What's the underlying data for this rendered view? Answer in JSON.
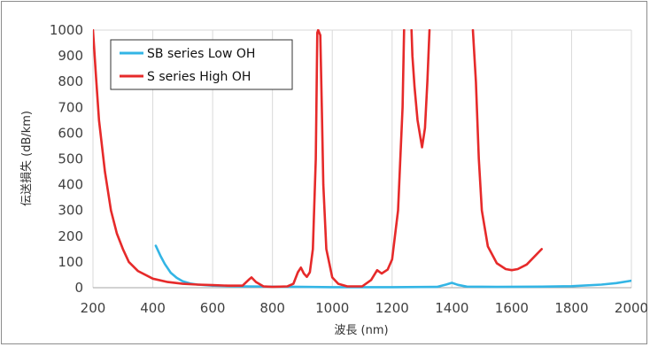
{
  "chart_data": {
    "type": "line",
    "title": "",
    "xlabel": "波長 (nm)",
    "ylabel": "伝送損失 (dB/km)",
    "xlim": [
      200,
      2000
    ],
    "ylim": [
      0,
      1000
    ],
    "x_ticks": [
      "200",
      "400",
      "600",
      "800",
      "1000",
      "1200",
      "1400",
      "1600",
      "1800",
      "2000"
    ],
    "y_ticks": [
      "0",
      "100",
      "200",
      "300",
      "400",
      "500",
      "600",
      "700",
      "800",
      "900",
      "1000"
    ],
    "grid": "vertical",
    "legend_position": "top-left",
    "series": [
      {
        "name": "SB series Low OH",
        "color": "#33b5e5",
        "points": [
          [
            410,
            163
          ],
          [
            425,
            125
          ],
          [
            440,
            92
          ],
          [
            460,
            58
          ],
          [
            480,
            38
          ],
          [
            500,
            25
          ],
          [
            525,
            16
          ],
          [
            550,
            12
          ],
          [
            600,
            8
          ],
          [
            700,
            5
          ],
          [
            800,
            4
          ],
          [
            900,
            3
          ],
          [
            1000,
            2
          ],
          [
            1200,
            2
          ],
          [
            1350,
            3
          ],
          [
            1380,
            12
          ],
          [
            1400,
            19
          ],
          [
            1420,
            11
          ],
          [
            1450,
            4
          ],
          [
            1550,
            3
          ],
          [
            1700,
            4
          ],
          [
            1800,
            6
          ],
          [
            1900,
            12
          ],
          [
            1950,
            18
          ],
          [
            2000,
            27
          ]
        ]
      },
      {
        "name": "S series High OH",
        "color": "#e62a2a",
        "points": [
          [
            200,
            1000
          ],
          [
            210,
            820
          ],
          [
            220,
            650
          ],
          [
            240,
            450
          ],
          [
            260,
            300
          ],
          [
            280,
            210
          ],
          [
            300,
            150
          ],
          [
            320,
            100
          ],
          [
            350,
            65
          ],
          [
            400,
            35
          ],
          [
            450,
            22
          ],
          [
            500,
            15
          ],
          [
            550,
            12
          ],
          [
            600,
            10
          ],
          [
            650,
            8
          ],
          [
            700,
            8
          ],
          [
            720,
            30
          ],
          [
            730,
            40
          ],
          [
            745,
            22
          ],
          [
            770,
            5
          ],
          [
            800,
            3
          ],
          [
            850,
            5
          ],
          [
            870,
            15
          ],
          [
            885,
            60
          ],
          [
            895,
            78
          ],
          [
            905,
            55
          ],
          [
            915,
            42
          ],
          [
            925,
            60
          ],
          [
            935,
            150
          ],
          [
            945,
            500
          ],
          [
            950,
            990
          ],
          [
            953,
            1000
          ],
          [
            960,
            980
          ],
          [
            965,
            700
          ],
          [
            970,
            400
          ],
          [
            980,
            150
          ],
          [
            1000,
            40
          ],
          [
            1020,
            15
          ],
          [
            1050,
            5
          ],
          [
            1100,
            5
          ],
          [
            1130,
            30
          ],
          [
            1150,
            68
          ],
          [
            1165,
            55
          ],
          [
            1185,
            70
          ],
          [
            1200,
            110
          ],
          [
            1220,
            300
          ],
          [
            1235,
            700
          ],
          [
            1240,
            1000
          ],
          [
            1265,
            1000
          ],
          [
            1268,
            900
          ],
          [
            1275,
            780
          ],
          [
            1285,
            650
          ],
          [
            1300,
            545
          ],
          [
            1310,
            620
          ],
          [
            1318,
            800
          ],
          [
            1325,
            1000
          ],
          [
            1470,
            1000
          ],
          [
            1480,
            800
          ],
          [
            1490,
            500
          ],
          [
            1500,
            300
          ],
          [
            1520,
            160
          ],
          [
            1550,
            95
          ],
          [
            1580,
            72
          ],
          [
            1600,
            68
          ],
          [
            1620,
            72
          ],
          [
            1650,
            90
          ],
          [
            1700,
            150
          ]
        ]
      }
    ]
  }
}
